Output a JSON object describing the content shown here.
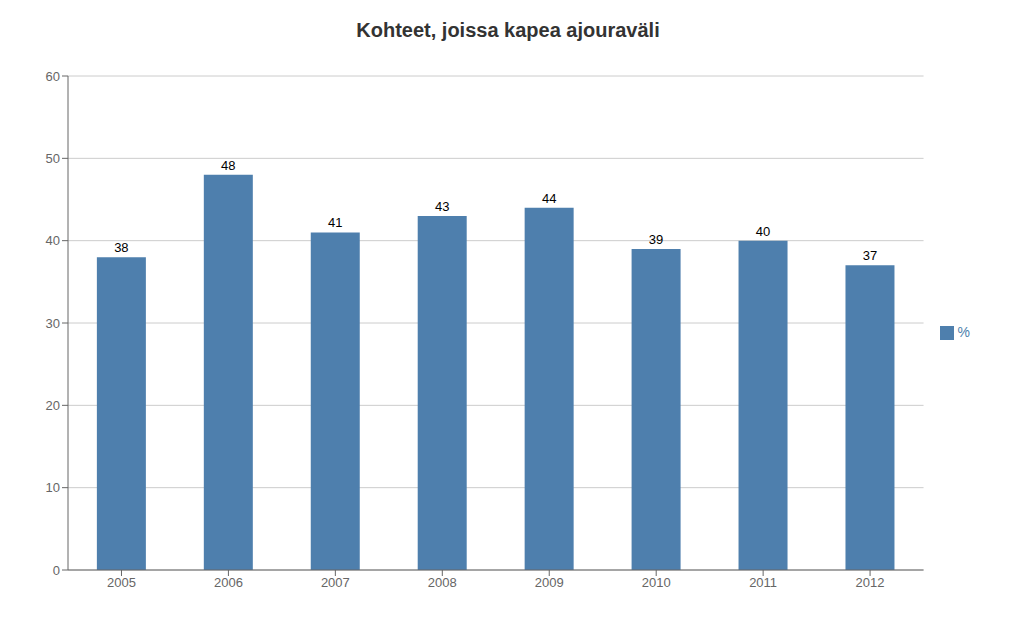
{
  "chart_data": {
    "type": "bar",
    "title": "Kohteet, joissa kapea ajouraväli",
    "categories": [
      "2005",
      "2006",
      "2007",
      "2008",
      "2009",
      "2010",
      "2011",
      "2012"
    ],
    "series": [
      {
        "name": "%",
        "color": "#4e7fad",
        "values": [
          38,
          48,
          41,
          43,
          44,
          39,
          40,
          37
        ]
      }
    ],
    "ylim": [
      0,
      60
    ],
    "yticks": [
      0,
      10,
      20,
      30,
      40,
      50,
      60
    ],
    "grid": true,
    "legend": "right",
    "data_labels": true
  }
}
